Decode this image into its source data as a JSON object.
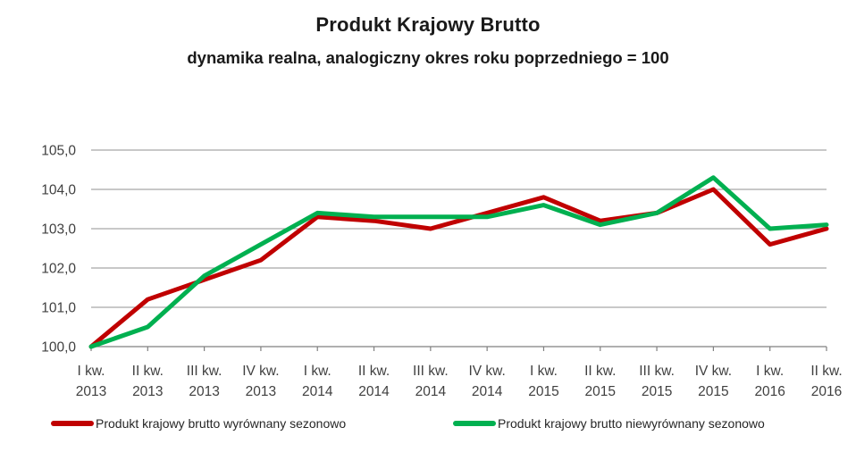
{
  "chart_data": {
    "type": "line",
    "title": "Produkt Krajowy Brutto",
    "subtitle": "dynamika realna, analogiczny okres roku poprzedniego = 100",
    "categories": [
      [
        "I kw.",
        "2013"
      ],
      [
        "II kw.",
        "2013"
      ],
      [
        "III kw.",
        "2013"
      ],
      [
        "IV kw.",
        "2013"
      ],
      [
        "I kw.",
        "2014"
      ],
      [
        "II kw.",
        "2014"
      ],
      [
        "III kw.",
        "2014"
      ],
      [
        "IV kw.",
        "2014"
      ],
      [
        "I kw.",
        "2015"
      ],
      [
        "II kw.",
        "2015"
      ],
      [
        "III kw.",
        "2015"
      ],
      [
        "IV kw.",
        "2015"
      ],
      [
        "I kw.",
        "2016"
      ],
      [
        "II kw.",
        "2016"
      ]
    ],
    "series": [
      {
        "name": "Produkt krajowy brutto wyrównany sezonowo",
        "color": "#c00000",
        "values": [
          100.0,
          101.2,
          101.7,
          102.2,
          103.3,
          103.2,
          103.0,
          103.4,
          103.8,
          103.2,
          103.4,
          104.0,
          102.6,
          103.0
        ]
      },
      {
        "name": "Produkt krajowy brutto niewyrównany sezonowo",
        "color": "#00b050",
        "values": [
          100.0,
          100.5,
          101.8,
          102.6,
          103.4,
          103.3,
          103.3,
          103.3,
          103.6,
          103.1,
          103.4,
          104.3,
          103.0,
          103.1
        ]
      }
    ],
    "ylim": [
      100,
      105
    ],
    "ytick_labels": [
      "100,0",
      "101,0",
      "102,0",
      "103,0",
      "104,0",
      "105,0"
    ],
    "xlabel": "",
    "ylabel": "",
    "grid": true,
    "legend_position": "bottom"
  },
  "colors": {
    "gridline": "#a6a6a6",
    "axis": "#808080",
    "tick_text": "#404040"
  }
}
